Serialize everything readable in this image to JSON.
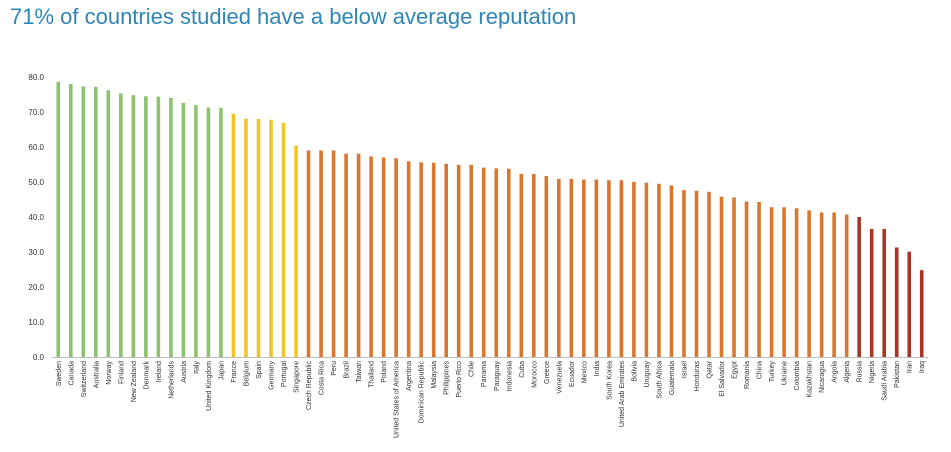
{
  "chart_data": {
    "type": "bar",
    "title": "71% of countries studied have a below average reputation",
    "xlabel": "",
    "ylabel": "",
    "ylim": [
      0,
      80
    ],
    "yticks": [
      "0.0",
      "10.0",
      "20.0",
      "30.0",
      "40.0",
      "50.0",
      "60.0",
      "70.0",
      "80.0"
    ],
    "grid": false,
    "colors": {
      "green": "#8dc26f",
      "yellow": "#f2c428",
      "orange": "#d9772f",
      "red": "#a83628"
    },
    "categories": [
      "Sweden",
      "Canada",
      "Switzerland",
      "Australia",
      "Norway",
      "Finland",
      "New Zealand",
      "Denmark",
      "Ireland",
      "Netherlands",
      "Austria",
      "Italy",
      "United Kingdom",
      "Japan",
      "France",
      "Belgium",
      "Spain",
      "Germany",
      "Portugal",
      "Singapore",
      "Czech Republic",
      "Costa Rica",
      "Peru",
      "Brazil",
      "Taiwan",
      "Thailand",
      "Poland",
      "United States of America",
      "Argentina",
      "Dominican Republic",
      "Malaysia",
      "Philippines",
      "Puerto Rico",
      "Chile",
      "Panama",
      "Paraguay",
      "Indonesia",
      "Cuba",
      "Morocco",
      "Greece",
      "Venezuela",
      "Ecuador",
      "Mexico",
      "India",
      "South Korea",
      "United Arab Emirates",
      "Bolivia",
      "Uruguay",
      "South Africa",
      "Guatemala",
      "Israel",
      "Honduras",
      "Qatar",
      "El Salvador",
      "Egypt",
      "Romania",
      "China",
      "Turkey",
      "Ukraine",
      "Colombia",
      "Kazakhstan",
      "Nicaragua",
      "Angola",
      "Algeria",
      "Russia",
      "Nigeria",
      "Saudi Arabia",
      "Pakistan",
      "Iran",
      "Iraq"
    ],
    "values": [
      78.6,
      78.0,
      77.3,
      77.2,
      76.2,
      75.3,
      74.8,
      74.5,
      74.4,
      74.0,
      72.6,
      72.0,
      71.3,
      71.2,
      69.5,
      68.1,
      68.0,
      67.8,
      66.9,
      60.4,
      59.0,
      59.0,
      59.0,
      58.1,
      58.1,
      57.3,
      57.0,
      56.8,
      55.9,
      55.6,
      55.5,
      55.2,
      54.9,
      54.9,
      54.1,
      53.9,
      53.8,
      52.3,
      52.3,
      51.7,
      50.9,
      50.9,
      50.7,
      50.7,
      50.5,
      50.5,
      50.0,
      49.8,
      49.5,
      49.0,
      47.7,
      47.5,
      47.2,
      45.8,
      45.6,
      44.4,
      44.3,
      42.8,
      42.8,
      42.5,
      41.9,
      41.3,
      41.3,
      40.7,
      40.0,
      36.6,
      36.6,
      31.3,
      30.1,
      24.8
    ],
    "bar_groups": [
      "green",
      "green",
      "green",
      "green",
      "green",
      "green",
      "green",
      "green",
      "green",
      "green",
      "green",
      "green",
      "green",
      "green",
      "yellow",
      "yellow",
      "yellow",
      "yellow",
      "yellow",
      "yellow",
      "orange",
      "orange",
      "orange",
      "orange",
      "orange",
      "orange",
      "orange",
      "orange",
      "orange",
      "orange",
      "orange",
      "orange",
      "orange",
      "orange",
      "orange",
      "orange",
      "orange",
      "orange",
      "orange",
      "orange",
      "orange",
      "orange",
      "orange",
      "orange",
      "orange",
      "orange",
      "orange",
      "orange",
      "orange",
      "orange",
      "orange",
      "orange",
      "orange",
      "orange",
      "orange",
      "orange",
      "orange",
      "orange",
      "orange",
      "orange",
      "orange",
      "orange",
      "orange",
      "orange",
      "red",
      "red",
      "red",
      "red",
      "red",
      "red"
    ]
  }
}
